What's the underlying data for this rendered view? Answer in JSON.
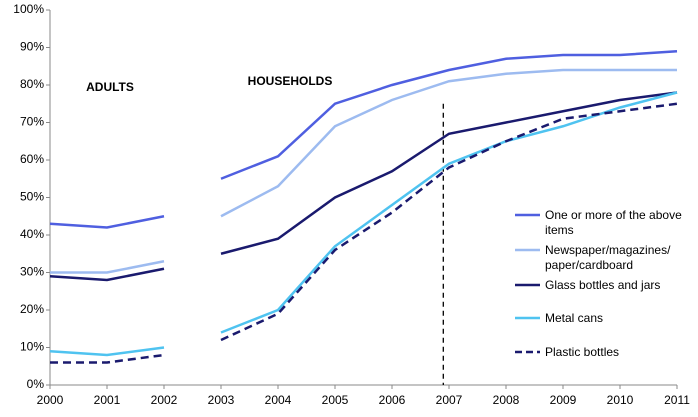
{
  "chart_data": {
    "type": "line",
    "categories": [
      "2000",
      "2001",
      "2002",
      "2003",
      "2004",
      "2005",
      "2006",
      "2007",
      "2008",
      "2009",
      "2010",
      "2011"
    ],
    "break_after": "2002",
    "annotations": [
      "ADULTS",
      "HOUSEHOLDS"
    ],
    "vline": 2006.9,
    "series": [
      {
        "name": "One or more of the above items",
        "color": "#4f5fe0",
        "dashed": false,
        "values": [
          43,
          42,
          45,
          55,
          61,
          75,
          80,
          84,
          87,
          88,
          88,
          89
        ]
      },
      {
        "name": "Newspaper/magazines/ paper/cardboard",
        "color": "#9dbbf0",
        "dashed": false,
        "values": [
          30,
          30,
          33,
          45,
          53,
          69,
          76,
          81,
          83,
          84,
          84,
          84
        ]
      },
      {
        "name": "Glass bottles and jars",
        "color": "#1a1a6e",
        "dashed": false,
        "values": [
          29,
          28,
          31,
          35,
          39,
          50,
          57,
          67,
          70,
          73,
          76,
          78
        ]
      },
      {
        "name": "Metal cans",
        "color": "#4fc3f0",
        "dashed": false,
        "values": [
          9,
          8,
          10,
          14,
          20,
          37,
          48,
          59,
          65,
          69,
          74,
          78
        ]
      },
      {
        "name": "Plastic bottles",
        "color": "#1a1a6e",
        "dashed": true,
        "values": [
          6,
          6,
          8,
          12,
          19,
          36,
          46,
          58,
          65,
          71,
          73,
          75
        ]
      }
    ],
    "ylim": [
      0,
      100
    ],
    "yticks": [
      {
        "value": 0,
        "label": "0%"
      },
      {
        "value": 10,
        "label": "10%"
      },
      {
        "value": 20,
        "label": "20%"
      },
      {
        "value": 30,
        "label": "30%"
      },
      {
        "value": 40,
        "label": "40%"
      },
      {
        "value": 50,
        "label": "50%"
      },
      {
        "value": 60,
        "label": "60%"
      },
      {
        "value": 70,
        "label": "70%"
      },
      {
        "value": 80,
        "label": "80%"
      },
      {
        "value": 90,
        "label": "90%"
      },
      {
        "value": 100,
        "label": "100%"
      }
    ],
    "grid": false
  }
}
